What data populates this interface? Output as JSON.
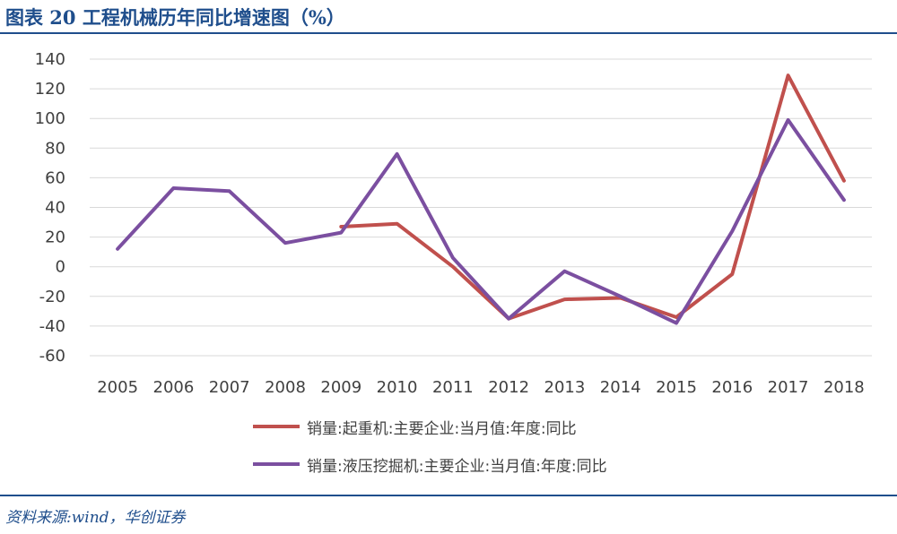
{
  "header": {
    "title": "图表 20  工程机械历年同比增速图（%）"
  },
  "footer": {
    "source": "资料来源:wind，华创证券"
  },
  "chart_data": {
    "type": "line",
    "title": "",
    "xlabel": "",
    "ylabel": "",
    "categories": [
      "2005",
      "2006",
      "2007",
      "2008",
      "2009",
      "2010",
      "2011",
      "2012",
      "2013",
      "2014",
      "2015",
      "2016",
      "2017",
      "2018"
    ],
    "ylim": [
      -60,
      140
    ],
    "yticks": [
      140,
      120,
      100,
      80,
      60,
      40,
      20,
      0,
      -20,
      -40,
      -60
    ],
    "grid": true,
    "legend_position": "bottom",
    "series": [
      {
        "name": "销量:起重机:主要企业:当月值:年度:同比",
        "color": "#c0504d",
        "values": [
          null,
          null,
          null,
          null,
          27,
          29,
          0,
          -35,
          -22,
          -21,
          -34,
          -5,
          129,
          58
        ]
      },
      {
        "name": "销量:液压挖掘机:主要企业:当月值:年度:同比",
        "color": "#7b4fa0",
        "values": [
          12,
          53,
          51,
          16,
          23,
          76,
          6,
          -35,
          -3,
          -20,
          -38,
          24,
          99,
          45
        ]
      }
    ]
  }
}
